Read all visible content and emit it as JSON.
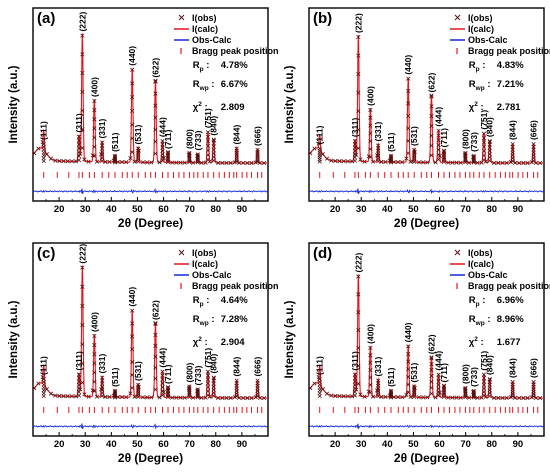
{
  "chart_data": [
    {
      "panel_label": "(a)",
      "type": "line",
      "xlabel": "2θ (Degree)",
      "ylabel": "Intensity (a.u.)",
      "xlim": [
        10,
        100
      ],
      "x_ticks": [
        "20",
        "30",
        "40",
        "50",
        "60",
        "70",
        "80",
        "90"
      ],
      "grid": false,
      "legend_position": "top-right",
      "legend": [
        "I(obs)",
        "I(calc)",
        "Obs-Calc",
        "Bragg peak position"
      ],
      "stats": {
        "rp_value": "4.78%",
        "rwp_value": "6.67%",
        "chi2_value": "2.809"
      },
      "peaks": [
        {
          "x": 14.1,
          "h": 0.13,
          "label": "(111)"
        },
        {
          "x": 27.6,
          "h": 0.18,
          "label": "(311)"
        },
        {
          "x": 28.9,
          "h": 0.86,
          "label": "(222)"
        },
        {
          "x": 33.5,
          "h": 0.42,
          "label": "(400)"
        },
        {
          "x": 36.5,
          "h": 0.14,
          "label": "(331)"
        },
        {
          "x": 41.4,
          "h": 0.05,
          "label": "(511)"
        },
        {
          "x": 48.0,
          "h": 0.63,
          "label": "(440)"
        },
        {
          "x": 50.3,
          "h": 0.1,
          "label": "(531)"
        },
        {
          "x": 56.9,
          "h": 0.55,
          "label": "(622)"
        },
        {
          "x": 59.6,
          "h": 0.15,
          "label": "(444)"
        },
        {
          "x": 61.7,
          "h": 0.07,
          "label": "(711)"
        },
        {
          "x": 69.9,
          "h": 0.07,
          "label": "(800)"
        },
        {
          "x": 73.1,
          "h": 0.06,
          "label": "(733)"
        },
        {
          "x": 77.0,
          "h": 0.21,
          "label": "(751)"
        },
        {
          "x": 79.2,
          "h": 0.16,
          "label": "(840)"
        },
        {
          "x": 88.0,
          "h": 0.1,
          "label": "(844)"
        },
        {
          "x": 96.0,
          "h": 0.09,
          "label": "(666)"
        }
      ]
    },
    {
      "panel_label": "(b)",
      "type": "line",
      "xlabel": "2θ (Degree)",
      "ylabel": "Intensity (a.u.)",
      "xlim": [
        10,
        100
      ],
      "x_ticks": [
        "20",
        "30",
        "40",
        "50",
        "60",
        "70",
        "80",
        "90"
      ],
      "grid": false,
      "legend_position": "top-right",
      "legend": [
        "I(obs)",
        "I(calc)",
        "Obs-Calc",
        "Bragg peak position"
      ],
      "stats": {
        "rp_value": "4.83%",
        "rwp_value": "7.21%",
        "chi2_value": "2.781"
      },
      "peaks": [
        {
          "x": 14.1,
          "h": 0.1,
          "label": "(111)"
        },
        {
          "x": 27.6,
          "h": 0.15,
          "label": "(311)"
        },
        {
          "x": 28.9,
          "h": 0.85,
          "label": "(222)"
        },
        {
          "x": 33.5,
          "h": 0.36,
          "label": "(400)"
        },
        {
          "x": 36.5,
          "h": 0.12,
          "label": "(331)"
        },
        {
          "x": 41.4,
          "h": 0.05,
          "label": "(511)"
        },
        {
          "x": 48.0,
          "h": 0.57,
          "label": "(440)"
        },
        {
          "x": 50.3,
          "h": 0.09,
          "label": "(531)"
        },
        {
          "x": 56.9,
          "h": 0.45,
          "label": "(622)"
        },
        {
          "x": 59.6,
          "h": 0.22,
          "label": "(444)"
        },
        {
          "x": 61.7,
          "h": 0.08,
          "label": "(711)"
        },
        {
          "x": 69.9,
          "h": 0.07,
          "label": "(800)"
        },
        {
          "x": 73.1,
          "h": 0.05,
          "label": "(733)"
        },
        {
          "x": 77.0,
          "h": 0.2,
          "label": "(751)"
        },
        {
          "x": 79.2,
          "h": 0.15,
          "label": "(840)"
        },
        {
          "x": 88.0,
          "h": 0.13,
          "label": "(844)"
        },
        {
          "x": 96.0,
          "h": 0.13,
          "label": "(666)"
        }
      ]
    },
    {
      "panel_label": "(c)",
      "type": "line",
      "xlabel": "2θ (Degree)",
      "ylabel": "Intensity (a.u.)",
      "xlim": [
        10,
        100
      ],
      "x_ticks": [
        "20",
        "30",
        "40",
        "50",
        "60",
        "70",
        "80",
        "90"
      ],
      "grid": false,
      "legend_position": "top-right",
      "legend": [
        "I(obs)",
        "I(calc)",
        "Obs-Calc",
        "Bragg peak position"
      ],
      "stats": {
        "rp_value": "4.64%",
        "rwp_value": "7.28%",
        "chi2_value": "2.904"
      },
      "peaks": [
        {
          "x": 14.1,
          "h": 0.13,
          "label": "(111)"
        },
        {
          "x": 27.6,
          "h": 0.16,
          "label": "(311)"
        },
        {
          "x": 28.9,
          "h": 0.88,
          "label": "(222)"
        },
        {
          "x": 33.5,
          "h": 0.42,
          "label": "(400)"
        },
        {
          "x": 36.5,
          "h": 0.14,
          "label": "(331)"
        },
        {
          "x": 41.4,
          "h": 0.05,
          "label": "(511)"
        },
        {
          "x": 48.0,
          "h": 0.59,
          "label": "(440)"
        },
        {
          "x": 50.3,
          "h": 0.09,
          "label": "(531)"
        },
        {
          "x": 56.9,
          "h": 0.5,
          "label": "(622)"
        },
        {
          "x": 59.6,
          "h": 0.18,
          "label": "(444)"
        },
        {
          "x": 61.7,
          "h": 0.07,
          "label": "(711)"
        },
        {
          "x": 69.9,
          "h": 0.08,
          "label": "(800)"
        },
        {
          "x": 73.1,
          "h": 0.06,
          "label": "(733)"
        },
        {
          "x": 77.0,
          "h": 0.18,
          "label": "(751)"
        },
        {
          "x": 79.2,
          "h": 0.14,
          "label": "(840)"
        },
        {
          "x": 88.0,
          "h": 0.12,
          "label": "(844)"
        },
        {
          "x": 96.0,
          "h": 0.12,
          "label": "(666)"
        }
      ]
    },
    {
      "panel_label": "(d)",
      "type": "line",
      "xlabel": "2θ (Degree)",
      "ylabel": "Intensity (a.u.)",
      "xlim": [
        10,
        100
      ],
      "x_ticks": [
        "20",
        "30",
        "40",
        "50",
        "60",
        "70",
        "80",
        "90"
      ],
      "grid": false,
      "legend_position": "top-right",
      "legend": [
        "I(obs)",
        "I(calc)",
        "Obs-Calc",
        "Bragg peak position"
      ],
      "stats": {
        "rp_value": "6.96%",
        "rwp_value": "8.96%",
        "chi2_value": "1.677"
      },
      "peaks": [
        {
          "x": 14.1,
          "h": 0.13,
          "label": "(111)"
        },
        {
          "x": 27.6,
          "h": 0.16,
          "label": "(311)"
        },
        {
          "x": 28.9,
          "h": 0.82,
          "label": "(222)"
        },
        {
          "x": 33.5,
          "h": 0.34,
          "label": "(400)"
        },
        {
          "x": 36.5,
          "h": 0.12,
          "label": "(331)"
        },
        {
          "x": 41.4,
          "h": 0.05,
          "label": "(511)"
        },
        {
          "x": 48.0,
          "h": 0.35,
          "label": "(440)"
        },
        {
          "x": 50.3,
          "h": 0.08,
          "label": "(531)"
        },
        {
          "x": 56.9,
          "h": 0.27,
          "label": "(622)"
        },
        {
          "x": 59.6,
          "h": 0.16,
          "label": "(444)"
        },
        {
          "x": 61.7,
          "h": 0.08,
          "label": "(711)"
        },
        {
          "x": 69.9,
          "h": 0.07,
          "label": "(800)"
        },
        {
          "x": 73.1,
          "h": 0.05,
          "label": "(733)"
        },
        {
          "x": 77.0,
          "h": 0.16,
          "label": "(751)"
        },
        {
          "x": 79.2,
          "h": 0.13,
          "label": "(840)"
        },
        {
          "x": 88.0,
          "h": 0.11,
          "label": "(844)"
        },
        {
          "x": 96.0,
          "h": 0.11,
          "label": "(666)"
        }
      ]
    }
  ],
  "stat_labels": {
    "rp": "R",
    "rp_sub": "p",
    "rwp": "R",
    "rwp_sub": "wp",
    "chi2": "χ",
    "chi2_sup": "2",
    "colon": ":"
  },
  "colors": {
    "obs": "#5a0f0f",
    "calc": "#e4141c",
    "diff": "#1428e0",
    "bragg": "#e4141c",
    "axis": "#000000"
  }
}
